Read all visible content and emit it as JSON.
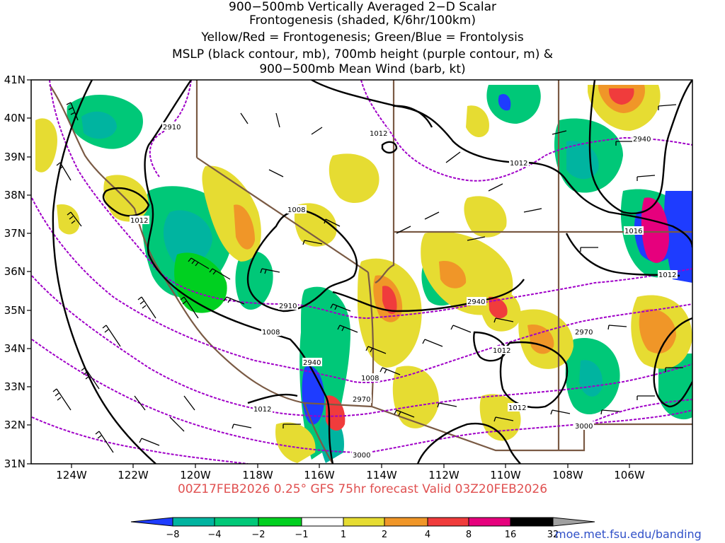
{
  "title_lines": [
    "900−500mb Vertically Averaged 2−D Scalar",
    "Frontogenesis (shaded, K/6hr/100km)",
    "Yellow/Red = Frontogenesis;  Green/Blue = Frontolysis",
    "MSLP (black contour, mb), 700mb height (purple contour, m) &",
    "900−500mb Mean Wind (barb, kt)"
  ],
  "subtitle": "00Z17FEB2026 0.25° GFS 75hr forecast Valid 03Z20FEB2026",
  "credit": "moe.met.fsu.edu/banding",
  "map": {
    "lon_labels": [
      "124W",
      "122W",
      "120W",
      "118W",
      "116W",
      "114W",
      "112W",
      "110W",
      "108W",
      "106W"
    ],
    "lat_labels": [
      "31N",
      "32N",
      "33N",
      "34N",
      "35N",
      "36N",
      "37N",
      "38N",
      "39N",
      "40N",
      "41N"
    ],
    "mslp_labels": [
      "1012",
      "1012",
      "1012",
      "1008",
      "1008",
      "1008",
      "1012",
      "1012",
      "1012",
      "1016",
      "1012"
    ],
    "height_labels": [
      "2910",
      "2910",
      "2940",
      "2940",
      "2970",
      "2940",
      "2970",
      "3000",
      "3000"
    ]
  },
  "colorbar": {
    "labels": [
      "−8",
      "−4",
      "−2",
      "−1",
      "1",
      "2",
      "4",
      "8",
      "16",
      "32"
    ],
    "colors": [
      "#1e3cff",
      "#00b4a0",
      "#00c878",
      "#00d020",
      "#ffffff",
      "#e6dc32",
      "#f09628",
      "#f03c3c",
      "#e6007d",
      "#000000",
      "#a0a0a0"
    ]
  },
  "colors": {
    "mslp": "#000000",
    "height": "#a000c8",
    "borders": "#7a5a44",
    "subtitle": "#e05050",
    "credit": "#3050c8"
  }
}
